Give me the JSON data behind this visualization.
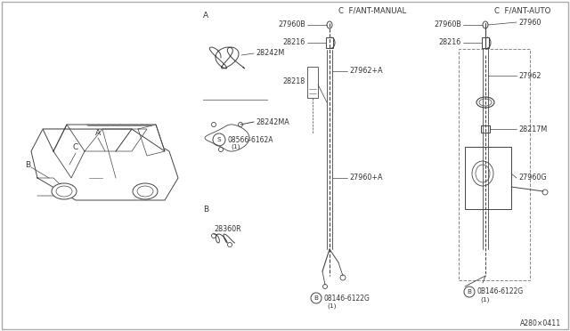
{
  "bg_color": "#ffffff",
  "line_color": "#444444",
  "text_color": "#333333",
  "section_header_manual": "C  F/ANT-MANUAL",
  "section_header_auto": "C  F/ANT-AUTO",
  "part_number_bottom": "A280×0411",
  "font_size_label": 5.8,
  "font_size_section": 6.2,
  "font_size_letter": 6.5
}
